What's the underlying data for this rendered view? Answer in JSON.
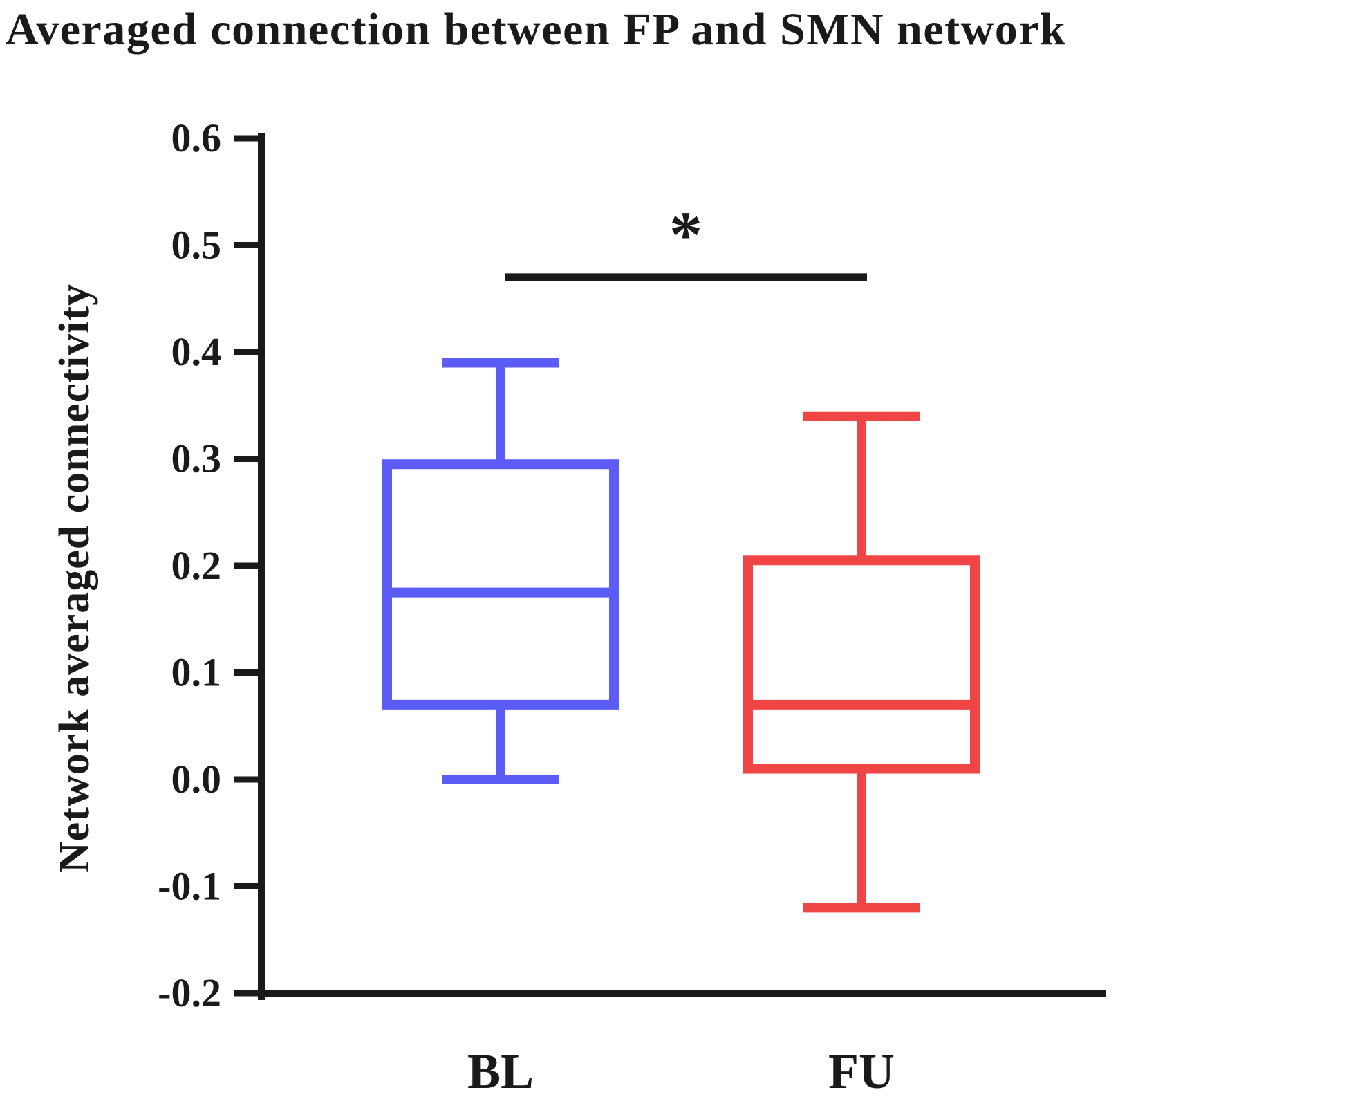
{
  "chart_data": {
    "type": "boxplot",
    "title": "Averaged connection between FP and SMN network",
    "xlabel": "",
    "ylabel": "Network averaged connectivity",
    "ylim": [
      -0.2,
      0.6
    ],
    "yticks": [
      0.6,
      0.5,
      0.4,
      0.3,
      0.2,
      0.1,
      0.0,
      -0.1,
      -0.2
    ],
    "ytick_labels": [
      "0.6",
      "0.5",
      "0.4",
      "0.3",
      "0.2",
      "0.1",
      "0.0",
      "-0.1",
      "-0.2"
    ],
    "categories": [
      "BL",
      "FU"
    ],
    "boxes": [
      {
        "category": "BL",
        "whisker_low": 0.0,
        "q1": 0.07,
        "median": 0.175,
        "q3": 0.295,
        "whisker_high": 0.39,
        "color": "#5b5bf5"
      },
      {
        "category": "FU",
        "whisker_low": -0.12,
        "q1": 0.01,
        "median": 0.07,
        "q3": 0.205,
        "whisker_high": 0.34,
        "color": "#f04545"
      }
    ],
    "significance": {
      "between": [
        "BL",
        "FU"
      ],
      "label": "*",
      "y": 0.47
    },
    "grid": false,
    "legend": "none"
  }
}
